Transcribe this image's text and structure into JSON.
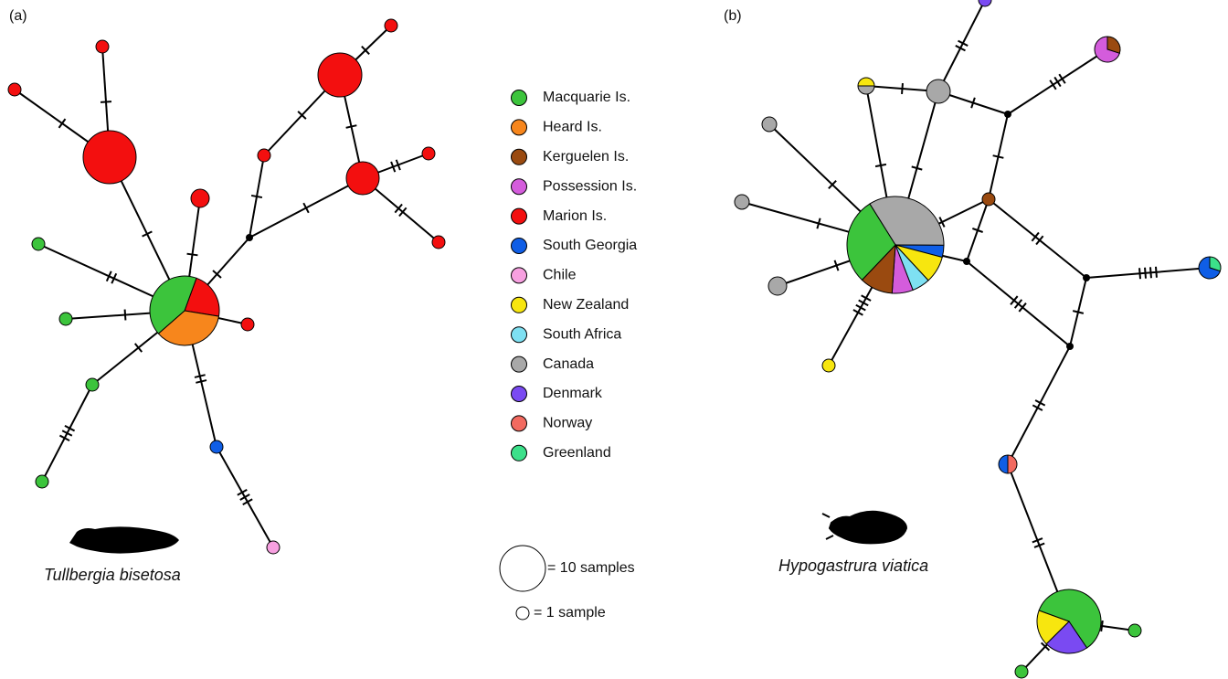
{
  "panel_a": {
    "label": "(a)",
    "species": "Tullbergia bisetosa"
  },
  "panel_b": {
    "label": "(b)",
    "species": "Hypogastrura viatica"
  },
  "legend": {
    "items": [
      {
        "name": "Macquarie Is.",
        "color": "#3cc43c"
      },
      {
        "name": "Heard Is.",
        "color": "#f7861c"
      },
      {
        "name": "Kerguelen Is.",
        "color": "#9a4a10"
      },
      {
        "name": "Possession Is.",
        "color": "#d45cdc"
      },
      {
        "name": "Marion Is.",
        "color": "#f30f0f"
      },
      {
        "name": "South Georgia",
        "color": "#0f5ee6"
      },
      {
        "name": "Chile",
        "color": "#f7a0e0"
      },
      {
        "name": "New Zealand",
        "color": "#f7e60f"
      },
      {
        "name": "South Africa",
        "color": "#7ee0f2"
      },
      {
        "name": "Canada",
        "color": "#a8a8a8"
      },
      {
        "name": "Denmark",
        "color": "#7a4af2"
      },
      {
        "name": "Norway",
        "color": "#f26a60"
      },
      {
        "name": "Greenland",
        "color": "#3ce08a"
      }
    ],
    "scale_large": "= 10 samples",
    "scale_small": "= 1 sample"
  }
}
